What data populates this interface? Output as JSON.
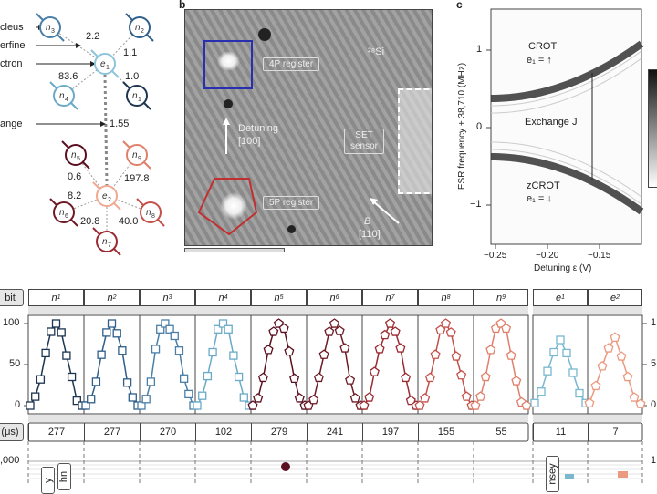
{
  "panel_a": {
    "side_labels": [
      "cleus",
      "erfine",
      "ctron",
      "ange"
    ],
    "nodes": [
      {
        "id": "n3",
        "sub": "3",
        "color": "#4a7fa8"
      },
      {
        "id": "n2",
        "sub": "2",
        "color": "#2f5f8a"
      },
      {
        "id": "e1",
        "sub": "1",
        "color": "#8cc4dc"
      },
      {
        "id": "n4",
        "sub": "4",
        "color": "#6aaac8"
      },
      {
        "id": "n1",
        "sub": "1",
        "color": "#1c3550"
      },
      {
        "id": "n5",
        "sub": "5",
        "color": "#5a1020"
      },
      {
        "id": "n9",
        "sub": "9",
        "color": "#e0806a"
      },
      {
        "id": "e2",
        "sub": "2",
        "color": "#f0a890"
      },
      {
        "id": "n6",
        "sub": "6",
        "color": "#6e1a26"
      },
      {
        "id": "n8",
        "sub": "8",
        "color": "#c4504a"
      },
      {
        "id": "n7",
        "sub": "7",
        "color": "#9a2a30"
      }
    ],
    "couplings": [
      "2.2",
      "1.1",
      "83.6",
      "1.0",
      "1.55",
      "0.6",
      "197.8",
      "8.2",
      "20.8",
      "40.0"
    ]
  },
  "panel_b": {
    "label": "b",
    "isotope": "²⁸Si",
    "register_4p": "4P register",
    "register_5p": "5P register",
    "detuning": "Detuning",
    "detuning_dir": "[100]",
    "set_sensor_1": "SET",
    "set_sensor_2": "sensor",
    "b_field": "B",
    "b_dir": "[110]"
  },
  "panel_c": {
    "label": "c",
    "ylabel": "ESR frequency + 38,710 (MHz)",
    "xlabel": "Detuning ε (V)",
    "yticks": [
      "1",
      "0",
      "−1"
    ],
    "xticks": [
      "−0.25",
      "−0.20",
      "−0.15"
    ],
    "crot": "CROT",
    "crot_state": "e₁ = ↑",
    "zcrot": "zCROT",
    "zcrot_state": "e₁ = ↓",
    "exchange": "Exchange J"
  },
  "bottom": {
    "row_label": "bit",
    "t_label": "(μs)",
    "yticks": [
      "100",
      "50",
      "0"
    ],
    "right_yticks": [
      "1",
      "5",
      "0"
    ],
    "lower_tick": ",000",
    "lower_right_tick": "1",
    "rot_labels": [
      "y",
      "hn",
      "nsey"
    ],
    "qubits": [
      {
        "name": "n",
        "sub": "1",
        "t": "277",
        "color": "#1c3550",
        "marker": "square",
        "values": [
          0,
          11,
          32,
          64,
          90,
          100,
          89,
          61,
          35,
          6,
          0
        ]
      },
      {
        "name": "n",
        "sub": "2",
        "t": "277",
        "color": "#2f5f8a",
        "marker": "square",
        "values": [
          0,
          8,
          29,
          62,
          89,
          100,
          88,
          67,
          28,
          10,
          0
        ]
      },
      {
        "name": "n",
        "sub": "3",
        "t": "270",
        "color": "#4a7fa8",
        "marker": "square",
        "values": [
          0,
          8,
          29,
          69,
          93,
          100,
          93,
          85,
          67,
          33,
          14,
          0
        ]
      },
      {
        "name": "n",
        "sub": "4",
        "t": "102",
        "color": "#6aaac8",
        "marker": "square",
        "values": [
          0,
          12,
          36,
          65,
          93,
          100,
          93,
          61,
          35,
          10,
          0
        ]
      },
      {
        "name": "n",
        "sub": "5",
        "t": "279",
        "color": "#5a1020",
        "marker": "pentagon",
        "values": [
          0,
          9,
          34,
          68,
          90,
          100,
          94,
          66,
          33,
          9,
          0
        ]
      },
      {
        "name": "n",
        "sub": "6",
        "t": "241",
        "color": "#6e1a26",
        "marker": "pentagon",
        "values": [
          0,
          7,
          34,
          62,
          90,
          100,
          91,
          70,
          31,
          9,
          0
        ]
      },
      {
        "name": "n",
        "sub": "7",
        "t": "197",
        "color": "#9a2a30",
        "marker": "pentagon",
        "values": [
          0,
          10,
          41,
          69,
          86,
          100,
          90,
          70,
          34,
          6,
          0
        ]
      },
      {
        "name": "n",
        "sub": "8",
        "t": "155",
        "color": "#c4504a",
        "marker": "pentagon",
        "values": [
          0,
          9,
          34,
          62,
          92,
          100,
          89,
          60,
          37,
          11,
          0
        ]
      },
      {
        "name": "n",
        "sub": "9",
        "t": "55",
        "color": "#e0806a",
        "marker": "pentagon",
        "values": [
          0,
          11,
          35,
          68,
          94,
          100,
          94,
          61,
          30,
          4,
          0
        ]
      },
      {
        "name": "e",
        "sub": "1",
        "t": "11",
        "color": "#7ab8d0",
        "marker": "square",
        "values": [
          3,
          17,
          42,
          65,
          80,
          64,
          40,
          15,
          3
        ]
      },
      {
        "name": "e",
        "sub": "2",
        "t": "7",
        "color": "#eb9a80",
        "marker": "pentagon",
        "values": [
          3,
          24,
          48,
          70,
          83,
          60,
          35,
          10,
          2
        ]
      }
    ]
  }
}
